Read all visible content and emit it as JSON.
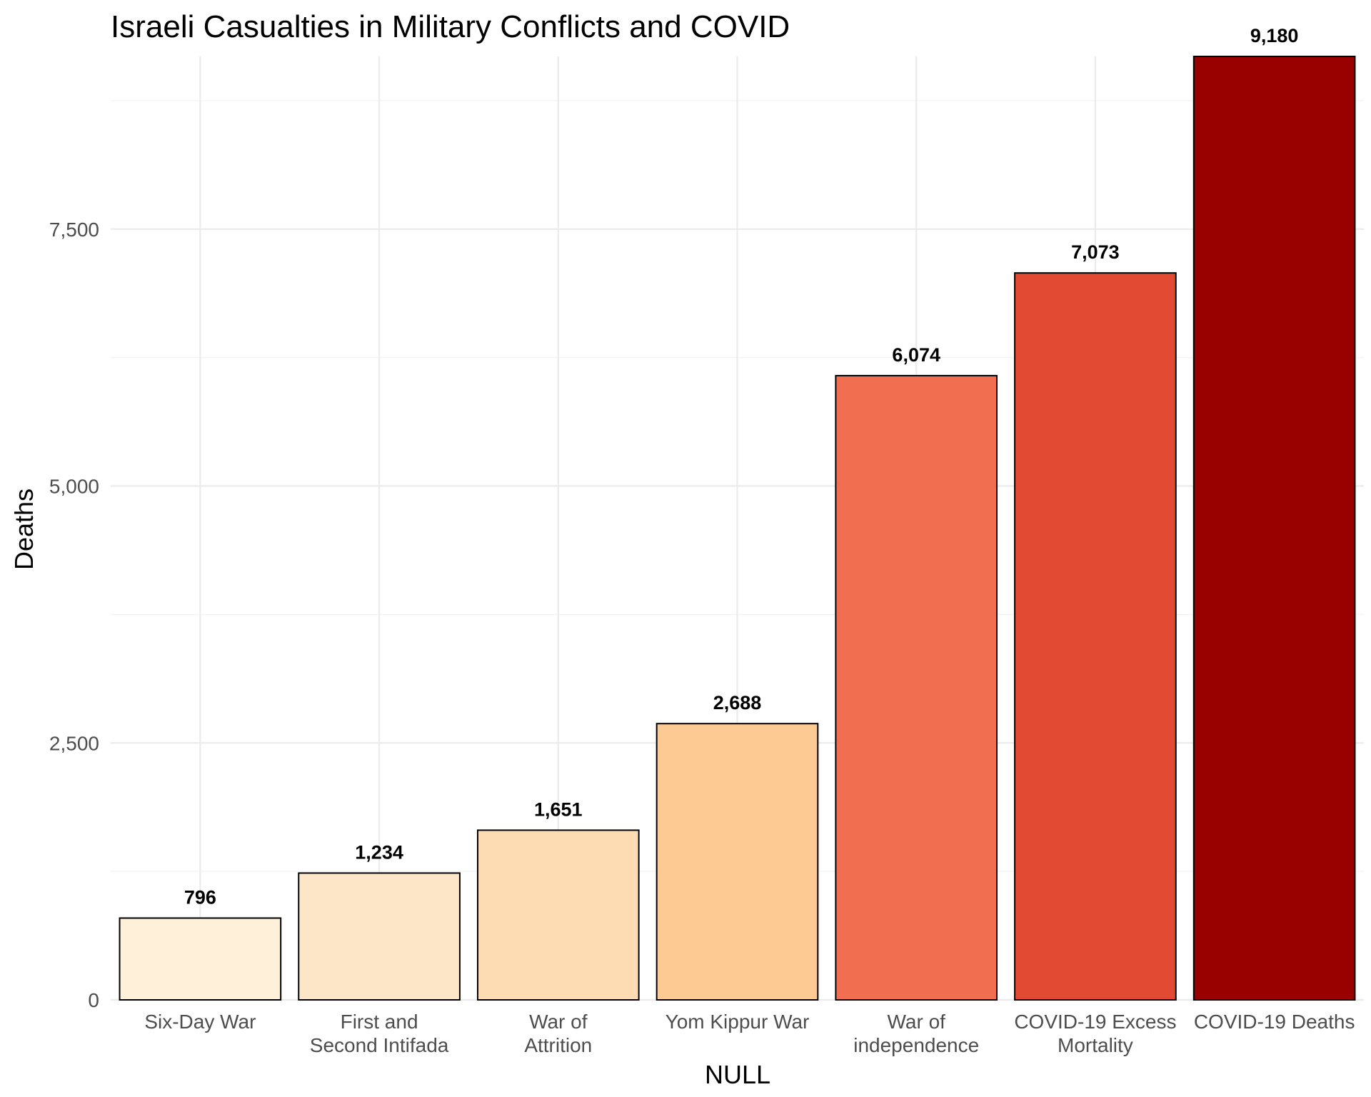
{
  "chart_data": {
    "type": "bar",
    "title": "Israeli Casualties in Military Conflicts and COVID",
    "xlabel": "NULL",
    "ylabel": "Deaths",
    "ylim": [
      0,
      9180
    ],
    "yticks": [
      0,
      2500,
      5000,
      7500
    ],
    "ytick_labels": [
      "0",
      "2,500",
      "5,000",
      "7,500"
    ],
    "grid": true,
    "legend": "none",
    "categories": [
      [
        "Six-Day War"
      ],
      [
        "First and",
        "Second Intifada"
      ],
      [
        "War of",
        "Attrition"
      ],
      [
        "Yom Kippur War"
      ],
      [
        "War of",
        "independence"
      ],
      [
        "COVID-19 Excess",
        "Mortality"
      ],
      [
        "COVID-19 Deaths"
      ]
    ],
    "values": [
      796,
      1234,
      1651,
      2688,
      6074,
      7073,
      9180
    ],
    "value_labels": [
      "796",
      "1,234",
      "1,651",
      "2,688",
      "6,074",
      "7,073",
      "9,180"
    ],
    "colors": [
      "#fef0d9",
      "#fde6c8",
      "#fddcb4",
      "#fdca94",
      "#f26e50",
      "#e34a33",
      "#990000"
    ]
  }
}
